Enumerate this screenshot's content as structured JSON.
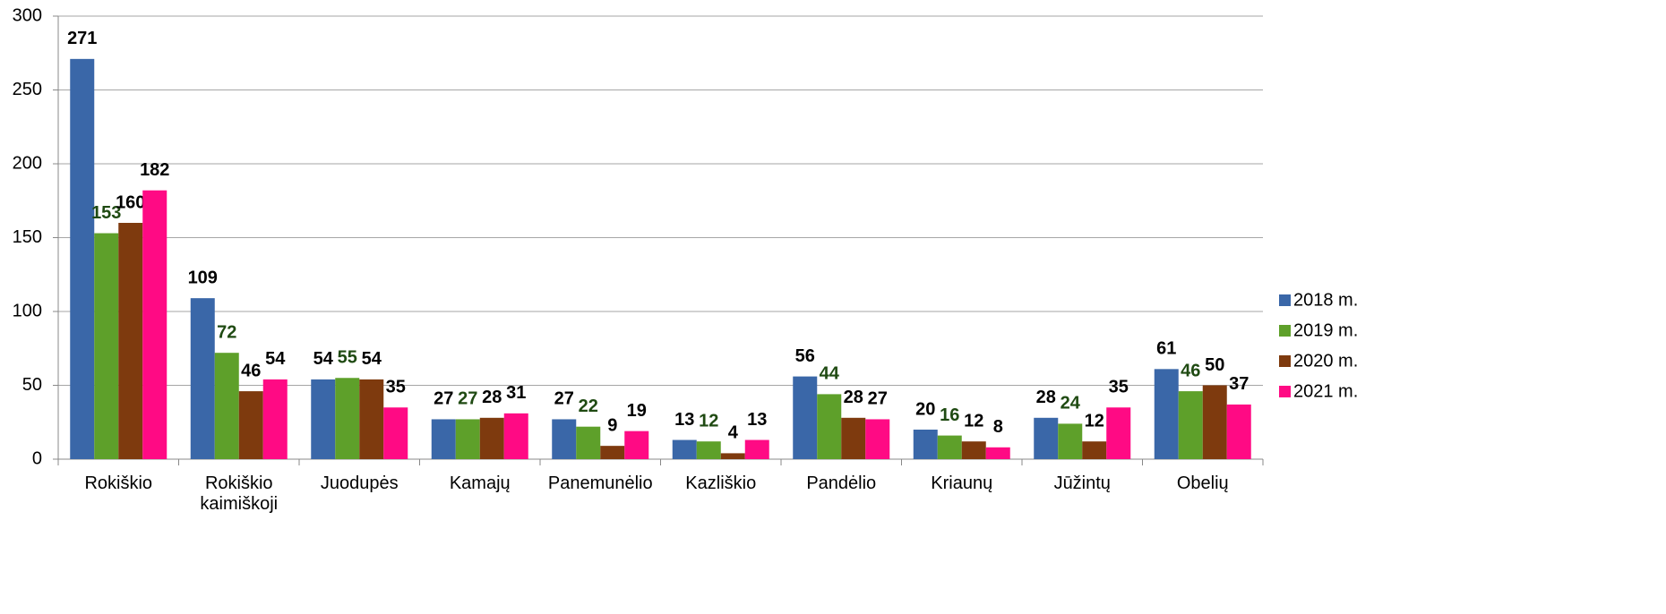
{
  "chart_data": {
    "type": "bar",
    "categories": [
      "Rokiškio",
      "Rokiškio kaimiškoji",
      "Juodupės",
      "Kamajų",
      "Panemunėlio",
      "Kazliškio",
      "Pandėlio",
      "Kriaunų",
      "Jūžintų",
      "Obelių"
    ],
    "series": [
      {
        "name": "2018 m.",
        "color": "#3a67a8",
        "label_color": "#000000",
        "values": [
          271,
          109,
          54,
          27,
          27,
          13,
          56,
          20,
          28,
          61
        ]
      },
      {
        "name": "2019 m.",
        "color": "#5ea02a",
        "label_color": "#1f4a12",
        "values": [
          153,
          72,
          55,
          27,
          22,
          12,
          44,
          16,
          24,
          46
        ]
      },
      {
        "name": "2020 m.",
        "color": "#7e3a0e",
        "label_color": "#000000",
        "values": [
          160,
          46,
          54,
          28,
          9,
          4,
          28,
          12,
          12,
          50
        ]
      },
      {
        "name": "2021 m.",
        "color": "#ff0a84",
        "label_color": "#000000",
        "values": [
          182,
          54,
          35,
          31,
          19,
          13,
          27,
          8,
          35,
          37
        ]
      }
    ],
    "ylim": [
      0,
      300
    ],
    "yticks": [
      0,
      50,
      100,
      150,
      200,
      250,
      300
    ],
    "grid": true,
    "legend": "right"
  }
}
